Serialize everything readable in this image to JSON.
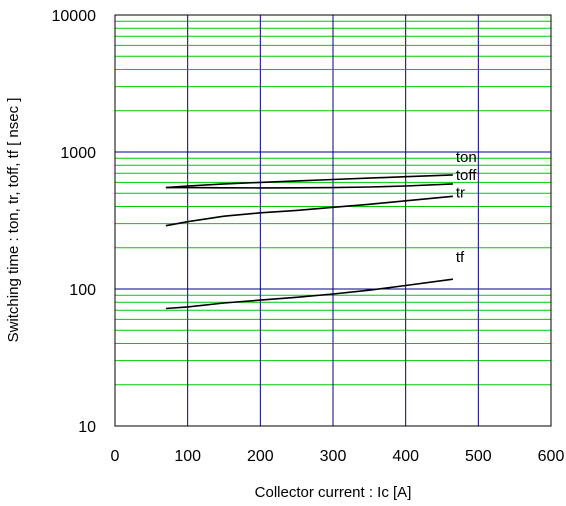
{
  "chart_data": {
    "type": "line",
    "title": "",
    "xlabel": "Collector current : Ic [A]",
    "ylabel": "Switching time  :  ton, tr, toff, tf  [ nsec ]",
    "xlim": [
      0,
      600
    ],
    "ylim": [
      10,
      10000
    ],
    "yscale": "log",
    "x_ticks": [
      "0",
      "100",
      "200",
      "300",
      "400",
      "500",
      "600"
    ],
    "y_ticks": [
      "10",
      "100",
      "1000",
      "10000"
    ],
    "grid": true,
    "colors": {
      "major_grid": "#00008b",
      "minor_grid": "#00cc00",
      "series": "#000000"
    },
    "series": [
      {
        "name": "ton",
        "x": [
          70,
          100,
          150,
          200,
          250,
          300,
          350,
          400,
          465
        ],
        "y": [
          550,
          565,
          585,
          600,
          615,
          630,
          645,
          660,
          680
        ]
      },
      {
        "name": "toff",
        "x": [
          70,
          100,
          150,
          200,
          250,
          300,
          350,
          400,
          465
        ],
        "y": [
          550,
          550,
          548,
          547,
          548,
          550,
          555,
          565,
          585
        ]
      },
      {
        "name": "tr",
        "x": [
          70,
          100,
          150,
          200,
          250,
          300,
          350,
          400,
          465
        ],
        "y": [
          290,
          310,
          340,
          360,
          375,
          395,
          415,
          440,
          475
        ]
      },
      {
        "name": "tf",
        "x": [
          70,
          100,
          150,
          200,
          250,
          300,
          350,
          400,
          465
        ],
        "y": [
          72,
          74,
          79,
          83,
          87,
          92,
          98,
          106,
          118
        ]
      }
    ]
  }
}
